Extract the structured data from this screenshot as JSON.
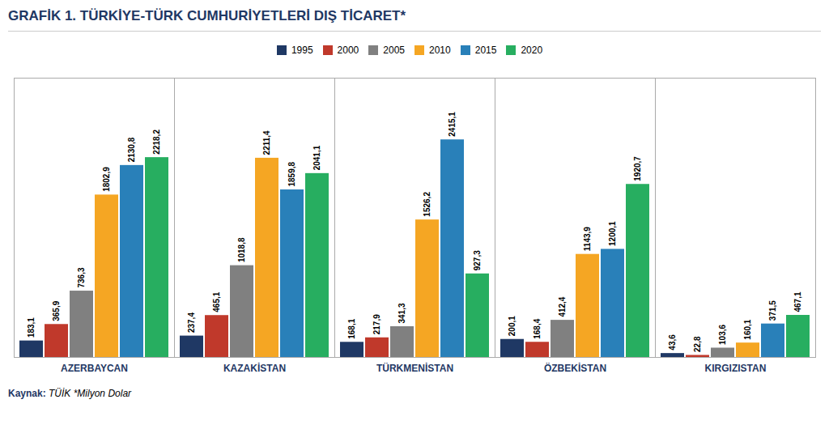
{
  "chart_data": {
    "type": "bar",
    "title": "GRAFİK 1. TÜRKİYE-TÜRK CUMHURİYETLERİ DIŞ TİCARET*",
    "categories": [
      "AZERBAYCAN",
      "KAZAKİSTAN",
      "TÜRKMENİSTAN",
      "ÖZBEKİSTAN",
      "KIRGIZISTAN"
    ],
    "series": [
      {
        "name": "1995",
        "color": "#1f3864",
        "values": [
          183.1,
          237.4,
          168.1,
          200.1,
          43.6
        ],
        "value_labels": [
          "183,1",
          "237,4",
          "168,1",
          "200,1",
          "43,6"
        ]
      },
      {
        "name": "2000",
        "color": "#c0392b",
        "values": [
          365.9,
          465.1,
          217.9,
          168.4,
          22.8
        ],
        "value_labels": [
          "365,9",
          "465,1",
          "217,9",
          "168,4",
          "22,8"
        ]
      },
      {
        "name": "2005",
        "color": "#808080",
        "values": [
          736.3,
          1018.8,
          341.3,
          412.4,
          103.6
        ],
        "value_labels": [
          "736,3",
          "1018,8",
          "341,3",
          "412,4",
          "103,6"
        ]
      },
      {
        "name": "2010",
        "color": "#f5a623",
        "values": [
          1802.9,
          2211.4,
          1526.2,
          1143.9,
          160.1
        ],
        "value_labels": [
          "1802,9",
          "2211,4",
          "1526,2",
          "1143,9",
          "160,1"
        ]
      },
      {
        "name": "2015",
        "color": "#2980b9",
        "values": [
          2130.8,
          1859.8,
          2415.1,
          1200.1,
          371.5
        ],
        "value_labels": [
          "2130,8",
          "1859,8",
          "2415,1",
          "1200,1",
          "371,5"
        ]
      },
      {
        "name": "2020",
        "color": "#27ae60",
        "values": [
          2218.2,
          2041.1,
          927.3,
          1920.7,
          467.1
        ],
        "value_labels": [
          "2218,2",
          "2041,1",
          "927,3",
          "1920,7",
          "467,1"
        ]
      }
    ],
    "ylim": [
      0,
      3100
    ],
    "tick_labels": "x",
    "data_labels": true,
    "legend": "top",
    "grid": false,
    "caption_label": "Kaynak:",
    "caption": "TÜİK *Milyon Dolar"
  }
}
